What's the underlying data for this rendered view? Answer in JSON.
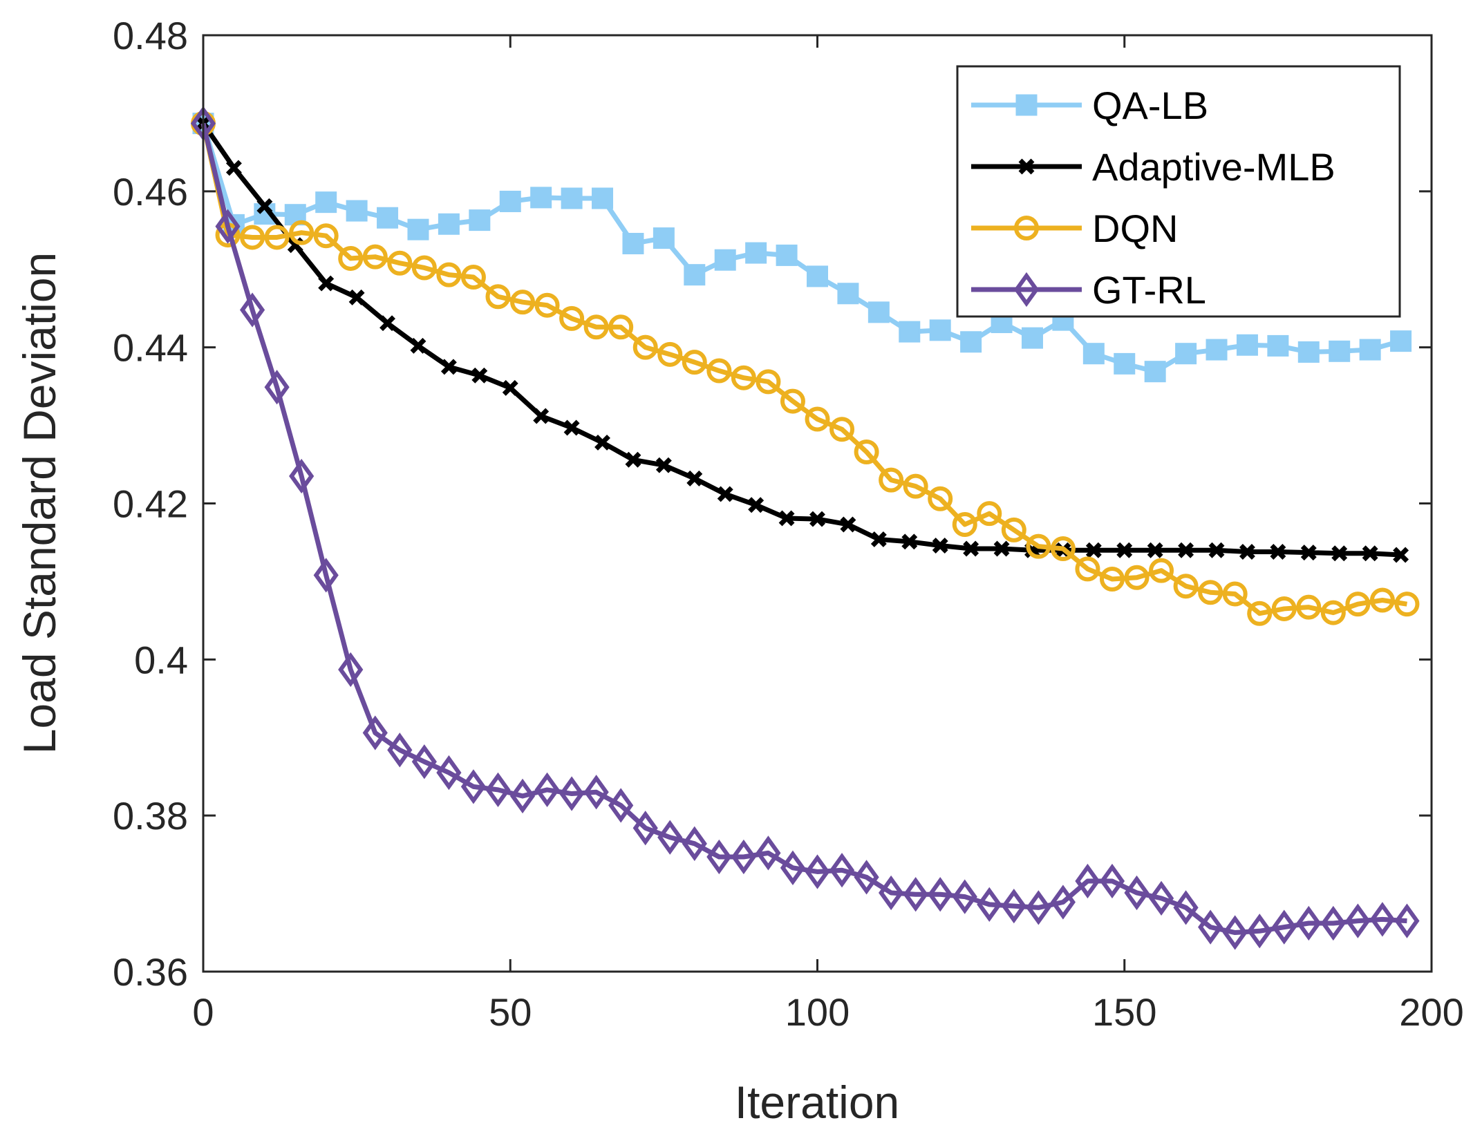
{
  "chart_data": {
    "type": "line",
    "title": "",
    "xlabel": "Iteration",
    "ylabel": "Load Standard Deviation",
    "xlim": [
      0,
      200
    ],
    "ylim": [
      0.36,
      0.48
    ],
    "xticks": [
      0,
      50,
      100,
      150,
      200
    ],
    "xtick_labels": [
      "0",
      "50",
      "100",
      "150",
      "200"
    ],
    "yticks": [
      0.36,
      0.38,
      0.4,
      0.42,
      0.44,
      0.46,
      0.48
    ],
    "ytick_labels": [
      "0.36",
      "0.38",
      "0.4",
      "0.42",
      "0.44",
      "0.46",
      "0.48"
    ],
    "grid": false,
    "legend_position": "top-right",
    "series": [
      {
        "name": "QA-LB",
        "color": "#8FCDF5",
        "marker": "square",
        "x": [
          0,
          5,
          10,
          15,
          20,
          25,
          30,
          35,
          40,
          45,
          50,
          55,
          60,
          65,
          70,
          75,
          80,
          85,
          90,
          95,
          100,
          105,
          110,
          115,
          120,
          125,
          130,
          135,
          140,
          145,
          150,
          155,
          160,
          165,
          170,
          175,
          180,
          185,
          190,
          195
        ],
        "values": [
          0.4687,
          0.4557,
          0.4571,
          0.457,
          0.4586,
          0.4575,
          0.4566,
          0.4551,
          0.4558,
          0.4563,
          0.4587,
          0.4592,
          0.4591,
          0.4591,
          0.4533,
          0.454,
          0.4493,
          0.4512,
          0.4521,
          0.4518,
          0.4491,
          0.4469,
          0.4445,
          0.442,
          0.4422,
          0.4407,
          0.4432,
          0.4412,
          0.4435,
          0.4392,
          0.4379,
          0.4369,
          0.4392,
          0.4397,
          0.4403,
          0.4402,
          0.4394,
          0.4395,
          0.4397,
          0.4408
        ]
      },
      {
        "name": "Adaptive-MLB",
        "color": "#000000",
        "marker": "x",
        "x": [
          0,
          5,
          10,
          15,
          20,
          25,
          30,
          35,
          40,
          45,
          50,
          55,
          60,
          65,
          70,
          75,
          80,
          85,
          90,
          95,
          100,
          105,
          110,
          115,
          120,
          125,
          130,
          135,
          140,
          145,
          150,
          155,
          160,
          165,
          170,
          175,
          180,
          185,
          190,
          195
        ],
        "values": [
          0.4687,
          0.463,
          0.4581,
          0.4531,
          0.4482,
          0.4464,
          0.4431,
          0.4402,
          0.4375,
          0.4364,
          0.4348,
          0.4312,
          0.4297,
          0.4278,
          0.4256,
          0.4249,
          0.4232,
          0.4212,
          0.4198,
          0.4181,
          0.418,
          0.4173,
          0.4154,
          0.4151,
          0.4146,
          0.4142,
          0.4142,
          0.414,
          0.414,
          0.414,
          0.414,
          0.414,
          0.414,
          0.414,
          0.4138,
          0.4138,
          0.4137,
          0.4136,
          0.4136,
          0.4134
        ]
      },
      {
        "name": "DQN",
        "color": "#EDB120",
        "marker": "circle",
        "x": [
          0,
          4,
          8,
          12,
          16,
          20,
          24,
          28,
          32,
          36,
          40,
          44,
          48,
          52,
          56,
          60,
          64,
          68,
          72,
          76,
          80,
          84,
          88,
          92,
          96,
          100,
          104,
          108,
          112,
          116,
          120,
          124,
          128,
          132,
          136,
          140,
          144,
          148,
          152,
          156,
          160,
          164,
          168,
          172,
          176,
          180,
          184,
          188,
          192,
          196
        ],
        "values": [
          0.4687,
          0.4544,
          0.4541,
          0.4541,
          0.4547,
          0.4543,
          0.4514,
          0.4516,
          0.4508,
          0.4502,
          0.4493,
          0.449,
          0.4465,
          0.4458,
          0.4454,
          0.4437,
          0.4426,
          0.4426,
          0.44,
          0.4391,
          0.4381,
          0.437,
          0.4361,
          0.4356,
          0.4331,
          0.4308,
          0.4295,
          0.4266,
          0.423,
          0.4222,
          0.4206,
          0.4173,
          0.4187,
          0.4166,
          0.4145,
          0.4142,
          0.4116,
          0.4103,
          0.4105,
          0.4114,
          0.4094,
          0.4086,
          0.4084,
          0.4059,
          0.4065,
          0.4067,
          0.406,
          0.4071,
          0.4076,
          0.4071
        ]
      },
      {
        "name": "GT-RL",
        "color": "#6A4C9C",
        "marker": "diamond",
        "x": [
          0,
          4,
          8,
          12,
          16,
          20,
          24,
          28,
          32,
          36,
          40,
          44,
          48,
          52,
          56,
          60,
          64,
          68,
          72,
          76,
          80,
          84,
          88,
          92,
          96,
          100,
          104,
          108,
          112,
          116,
          120,
          124,
          128,
          132,
          136,
          140,
          144,
          148,
          152,
          156,
          160,
          164,
          168,
          172,
          176,
          180,
          184,
          188,
          192,
          196
        ],
        "values": [
          0.4687,
          0.4555,
          0.4448,
          0.4349,
          0.4235,
          0.4108,
          0.3987,
          0.3906,
          0.3884,
          0.3869,
          0.3855,
          0.3837,
          0.3833,
          0.3825,
          0.3833,
          0.3828,
          0.383,
          0.3813,
          0.3784,
          0.3772,
          0.3764,
          0.3747,
          0.3747,
          0.3752,
          0.3733,
          0.3728,
          0.373,
          0.3721,
          0.3701,
          0.3699,
          0.3699,
          0.3696,
          0.3686,
          0.3684,
          0.3682,
          0.3689,
          0.3716,
          0.3716,
          0.3701,
          0.3694,
          0.3682,
          0.3657,
          0.365,
          0.3652,
          0.3657,
          0.3662,
          0.3662,
          0.3665,
          0.3667,
          0.3665
        ]
      }
    ]
  }
}
